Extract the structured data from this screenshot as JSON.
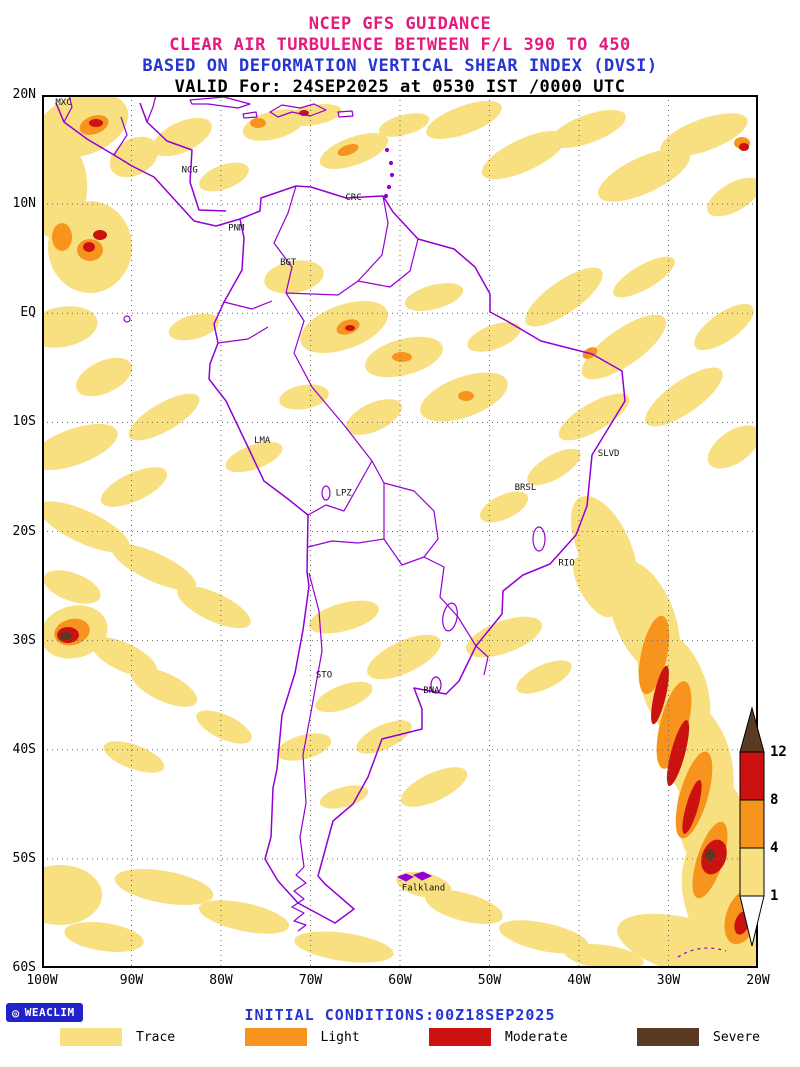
{
  "header": {
    "line1": "NCEP GFS GUIDANCE",
    "line2": "CLEAR AIR TURBULENCE BETWEEN F/L 390 TO 450",
    "line3": "BASED ON DEFORMATION VERTICAL SHEAR INDEX (DVSI)",
    "line4": "VALID For: 24SEP2025 at 0530 IST /0000 UTC"
  },
  "colors": {
    "title_magenta": "#e6197e",
    "title_blue": "#2435d1",
    "border_purple": "#9400d3",
    "grid_gray": "#666666"
  },
  "map": {
    "lat_ticks": [
      "20N",
      "10N",
      "EQ",
      "10S",
      "20S",
      "30S",
      "40S",
      "50S",
      "60S"
    ],
    "lon_ticks": [
      "100W",
      "90W",
      "80W",
      "70W",
      "60W",
      "50W",
      "40W",
      "30W",
      "20W"
    ],
    "cities": [
      {
        "label": "MXC",
        "lon": -98.5,
        "lat": 19.1
      },
      {
        "label": "NCG",
        "lon": -84.4,
        "lat": 12.9
      },
      {
        "label": "CRC",
        "lon": -66.1,
        "lat": 10.4
      },
      {
        "label": "PNM",
        "lon": -79.2,
        "lat": 7.6
      },
      {
        "label": "BGT",
        "lon": -73.4,
        "lat": 4.4
      },
      {
        "label": "LMA",
        "lon": -76.3,
        "lat": -11.9
      },
      {
        "label": "LPZ",
        "lon": -67.2,
        "lat": -16.7
      },
      {
        "label": "SLVD",
        "lon": -37.9,
        "lat": -13.1
      },
      {
        "label": "BRSL",
        "lon": -47.2,
        "lat": -16.2
      },
      {
        "label": "RIO",
        "lon": -42.3,
        "lat": -23.1
      },
      {
        "label": "STO",
        "lon": -69.4,
        "lat": -33.4
      },
      {
        "label": "BNA",
        "lon": -57.4,
        "lat": -34.8
      },
      {
        "label": "Falkland",
        "lon": -59.8,
        "lat": -52.9
      }
    ]
  },
  "chart_data": {
    "type": "heatmap",
    "subtype": "filled-contour-weather-map",
    "title": "NCEP GFS GUIDANCE - CLEAR AIR TURBULENCE BETWEEN F/L 390 TO 450",
    "method": "BASED ON DEFORMATION VERTICAL SHEAR INDEX (DVSI)",
    "valid": "24SEP2025 at 0530 IST /0000 UTC",
    "initial_conditions": "00Z18SEP2025",
    "lon_range_deg": [
      -100,
      -20
    ],
    "lat_range_deg": [
      -60,
      20
    ],
    "grid": true,
    "legend_position": "bottom",
    "levels": [
      {
        "name": "Trace",
        "min": 1,
        "max": 4,
        "color": "#f8e080"
      },
      {
        "name": "Light",
        "min": 4,
        "max": 8,
        "color": "#f7941e"
      },
      {
        "name": "Moderate",
        "min": 8,
        "max": 12,
        "color": "#cc1111"
      },
      {
        "name": "Severe",
        "min": 12,
        "max": null,
        "color": "#5a3a22"
      }
    ],
    "colorbar": {
      "tick_labels": [
        "12",
        "8",
        "4",
        "1"
      ]
    },
    "regions_units": "map pixels, canvas 716x873 = 100W..20W x 20N..60S, format [cx,cy,rx,ry,rotationDeg,levelIndex]",
    "regions": [
      [
        40,
        30,
        48,
        30,
        -20,
        0
      ],
      [
        15,
        95,
        30,
        48,
        5,
        0
      ],
      [
        48,
        152,
        42,
        46,
        0,
        0
      ],
      [
        92,
        62,
        26,
        18,
        -30,
        0
      ],
      [
        140,
        42,
        32,
        15,
        -25,
        0
      ],
      [
        182,
        82,
        26,
        12,
        -20,
        0
      ],
      [
        232,
        30,
        32,
        14,
        -15,
        0
      ],
      [
        272,
        20,
        28,
        10,
        -10,
        0
      ],
      [
        312,
        56,
        36,
        14,
        -20,
        0
      ],
      [
        362,
        30,
        26,
        10,
        -15,
        0
      ],
      [
        422,
        25,
        40,
        14,
        -20,
        0
      ],
      [
        482,
        60,
        46,
        16,
        -25,
        0
      ],
      [
        546,
        34,
        40,
        14,
        -20,
        0
      ],
      [
        602,
        80,
        50,
        18,
        -25,
        0
      ],
      [
        662,
        40,
        46,
        16,
        -20,
        0
      ],
      [
        692,
        102,
        30,
        14,
        -30,
        0
      ],
      [
        20,
        232,
        36,
        20,
        -10,
        0
      ],
      [
        62,
        282,
        30,
        16,
        -25,
        0
      ],
      [
        122,
        322,
        40,
        14,
        -30,
        0
      ],
      [
        32,
        352,
        46,
        18,
        -20,
        0
      ],
      [
        92,
        392,
        36,
        14,
        -25,
        0
      ],
      [
        152,
        232,
        26,
        12,
        -15,
        0
      ],
      [
        212,
        362,
        30,
        12,
        -20,
        0
      ],
      [
        252,
        182,
        30,
        16,
        -10,
        0
      ],
      [
        302,
        232,
        46,
        22,
        -20,
        0
      ],
      [
        362,
        262,
        40,
        18,
        -15,
        0
      ],
      [
        422,
        302,
        46,
        20,
        -20,
        0
      ],
      [
        262,
        302,
        25,
        12,
        -10,
        0
      ],
      [
        332,
        322,
        30,
        14,
        -25,
        0
      ],
      [
        392,
        202,
        30,
        12,
        -15,
        0
      ],
      [
        452,
        242,
        28,
        12,
        -20,
        0
      ],
      [
        522,
        202,
        46,
        16,
        -35,
        0
      ],
      [
        582,
        252,
        50,
        18,
        -35,
        0
      ],
      [
        642,
        302,
        46,
        16,
        -35,
        0
      ],
      [
        602,
        182,
        35,
        12,
        -30,
        0
      ],
      [
        682,
        232,
        35,
        14,
        -35,
        0
      ],
      [
        552,
        322,
        40,
        14,
        -30,
        0
      ],
      [
        692,
        352,
        30,
        16,
        -35,
        0
      ],
      [
        512,
        372,
        30,
        12,
        -30,
        0
      ],
      [
        462,
        412,
        26,
        12,
        -25,
        0
      ],
      [
        42,
        432,
        50,
        16,
        25,
        0
      ],
      [
        112,
        472,
        46,
        14,
        25,
        0
      ],
      [
        172,
        512,
        40,
        14,
        25,
        0
      ],
      [
        30,
        492,
        30,
        14,
        20,
        0
      ],
      [
        32,
        537,
        34,
        26,
        -15,
        0
      ],
      [
        82,
        562,
        36,
        14,
        25,
        0
      ],
      [
        122,
        592,
        36,
        14,
        25,
        0
      ],
      [
        182,
        632,
        30,
        12,
        25,
        0
      ],
      [
        92,
        662,
        32,
        12,
        20,
        0
      ],
      [
        302,
        522,
        36,
        14,
        -15,
        0
      ],
      [
        362,
        562,
        40,
        16,
        -25,
        0
      ],
      [
        302,
        602,
        30,
        12,
        -20,
        0
      ],
      [
        262,
        652,
        28,
        12,
        -15,
        0
      ],
      [
        342,
        642,
        30,
        12,
        -25,
        0
      ],
      [
        392,
        692,
        36,
        14,
        -25,
        0
      ],
      [
        302,
        702,
        25,
        10,
        -15,
        0
      ],
      [
        462,
        542,
        40,
        16,
        -20,
        0
      ],
      [
        502,
        582,
        30,
        12,
        -25,
        0
      ],
      [
        552,
        492,
        34,
        14,
        60,
        0
      ],
      [
        562,
        452,
        55,
        26,
        65,
        0
      ],
      [
        602,
        522,
        60,
        30,
        68,
        0
      ],
      [
        632,
        592,
        60,
        32,
        70,
        0
      ],
      [
        656,
        662,
        60,
        32,
        72,
        0
      ],
      [
        672,
        732,
        60,
        35,
        75,
        0
      ],
      [
        682,
        802,
        66,
        40,
        75,
        0
      ],
      [
        648,
        852,
        75,
        28,
        15,
        0
      ],
      [
        122,
        792,
        50,
        16,
        10,
        0
      ],
      [
        202,
        822,
        46,
        14,
        12,
        0
      ],
      [
        302,
        852,
        50,
        14,
        8,
        0
      ],
      [
        422,
        812,
        40,
        14,
        15,
        0
      ],
      [
        382,
        790,
        28,
        12,
        12,
        0
      ],
      [
        502,
        842,
        46,
        14,
        12,
        0
      ],
      [
        562,
        862,
        40,
        12,
        8,
        0
      ],
      [
        62,
        842,
        40,
        14,
        8,
        0
      ],
      [
        18,
        800,
        42,
        30,
        0,
        0
      ],
      [
        52,
        30,
        15,
        9,
        -20,
        1
      ],
      [
        20,
        142,
        10,
        14,
        0,
        1
      ],
      [
        48,
        155,
        13,
        11,
        0,
        1
      ],
      [
        216,
        28,
        8,
        5,
        0,
        1
      ],
      [
        306,
        55,
        11,
        5,
        -20,
        1
      ],
      [
        306,
        232,
        12,
        7,
        -20,
        1
      ],
      [
        360,
        262,
        10,
        5,
        0,
        1
      ],
      [
        424,
        301,
        8,
        5,
        0,
        1
      ],
      [
        548,
        258,
        8,
        5,
        -30,
        1
      ],
      [
        30,
        537,
        18,
        13,
        -15,
        1
      ],
      [
        700,
        48,
        8,
        6,
        0,
        1
      ],
      [
        612,
        560,
        13,
        40,
        12,
        1
      ],
      [
        632,
        630,
        14,
        45,
        14,
        1
      ],
      [
        652,
        700,
        14,
        45,
        16,
        1
      ],
      [
        668,
        765,
        13,
        40,
        18,
        1
      ],
      [
        700,
        822,
        16,
        28,
        18,
        1
      ],
      [
        54,
        28,
        7,
        4,
        0,
        2
      ],
      [
        47,
        152,
        6,
        5,
        0,
        2
      ],
      [
        58,
        140,
        7,
        5,
        0,
        2
      ],
      [
        262,
        18,
        5,
        3,
        0,
        2
      ],
      [
        308,
        233,
        5,
        3,
        0,
        2
      ],
      [
        26,
        540,
        11,
        8,
        0,
        2
      ],
      [
        702,
        52,
        5,
        4,
        0,
        2
      ],
      [
        618,
        600,
        6,
        30,
        13,
        2
      ],
      [
        636,
        658,
        7,
        34,
        15,
        2
      ],
      [
        650,
        712,
        6,
        28,
        16,
        2
      ],
      [
        672,
        762,
        12,
        18,
        20,
        2
      ],
      [
        700,
        828,
        7,
        12,
        18,
        2
      ],
      [
        24,
        541,
        6,
        4,
        0,
        3
      ],
      [
        668,
        760,
        5,
        6,
        0,
        3
      ]
    ]
  },
  "footer": {
    "logo": "WEACLIM",
    "initial_conditions": "INITIAL CONDITIONS:00Z18SEP2025",
    "legend": [
      "Trace",
      "Light",
      "Moderate",
      "Severe"
    ]
  }
}
